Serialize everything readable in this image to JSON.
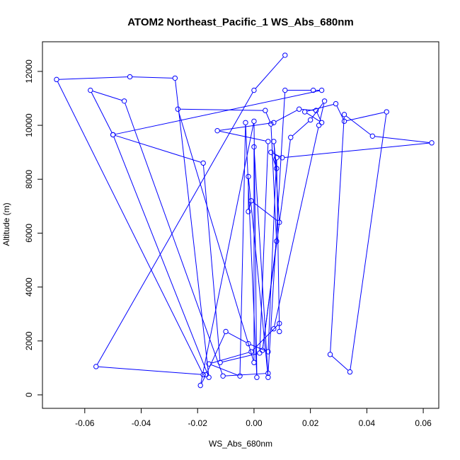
{
  "chart_data": {
    "type": "line",
    "title": "ATOM2 Northeast_Pacific_1 WS_Abs_680nm",
    "xlabel": "WS_Abs_680nm",
    "ylabel": "Altitude (m)",
    "xlim": [
      -0.075,
      0.0655
    ],
    "ylim": [
      -500,
      13100
    ],
    "xticks": [
      -0.06,
      -0.04,
      -0.02,
      0.0,
      0.02,
      0.04,
      0.06
    ],
    "xtick_labels": [
      "-0.06",
      "-0.04",
      "-0.02",
      "0.00",
      "0.02",
      "0.04",
      "0.06"
    ],
    "yticks": [
      0,
      2000,
      4000,
      6000,
      8000,
      10000,
      12000
    ],
    "ytick_labels": [
      "0",
      "2000",
      "4000",
      "6000",
      "8000",
      "10000",
      "12000"
    ],
    "grid": false,
    "legend": false,
    "series": [
      {
        "color": "#0000ff",
        "marker": "open-circle",
        "x": [
          0.011,
          0.0,
          -0.056,
          -0.018,
          -0.07,
          -0.044,
          -0.028,
          -0.016,
          -0.05,
          -0.058,
          -0.046,
          -0.011,
          0.005,
          0.011,
          0.021,
          0.024,
          -0.05,
          -0.018,
          -0.012,
          0.002,
          0.005,
          -0.013,
          0.007,
          0.016,
          0.022,
          0.024,
          0.018,
          0.029,
          0.032,
          0.047,
          0.034,
          0.027,
          0.032,
          0.042,
          0.063,
          0.01,
          0.006,
          0.008,
          0.007,
          0.009,
          -0.001,
          -0.002,
          -0.002,
          0.005,
          0.0,
          0.0,
          -0.027,
          0.004,
          0.006,
          0.008,
          0.003,
          0.013,
          0.02,
          0.025,
          0.023,
          0.007,
          0.009,
          -0.001,
          -0.016,
          -0.005,
          -0.003,
          0.001,
          0.0,
          -0.019,
          -0.017,
          -0.01,
          -0.002,
          0.005,
          0.008,
          0.009
        ],
        "y": [
          12600,
          11300,
          1050,
          750,
          11700,
          11800,
          11750,
          650,
          9650,
          11300,
          10900,
          700,
          800,
          11300,
          11300,
          11300,
          9650,
          8600,
          1200,
          1550,
          9400,
          9800,
          10100,
          10600,
          10550,
          10100,
          10500,
          10800,
          10150,
          10500,
          850,
          1500,
          10400,
          9600,
          9350,
          8800,
          9000,
          8400,
          9400,
          6400,
          7200,
          6800,
          8100,
          650,
          9200,
          1200,
          10600,
          10550,
          10050,
          5700,
          1650,
          9550,
          10200,
          10900,
          10000,
          2450,
          2650,
          1600,
          1150,
          700,
          10100,
          650,
          10150,
          350,
          750,
          2350,
          1900,
          1600,
          8800,
          2350
        ]
      }
    ]
  }
}
